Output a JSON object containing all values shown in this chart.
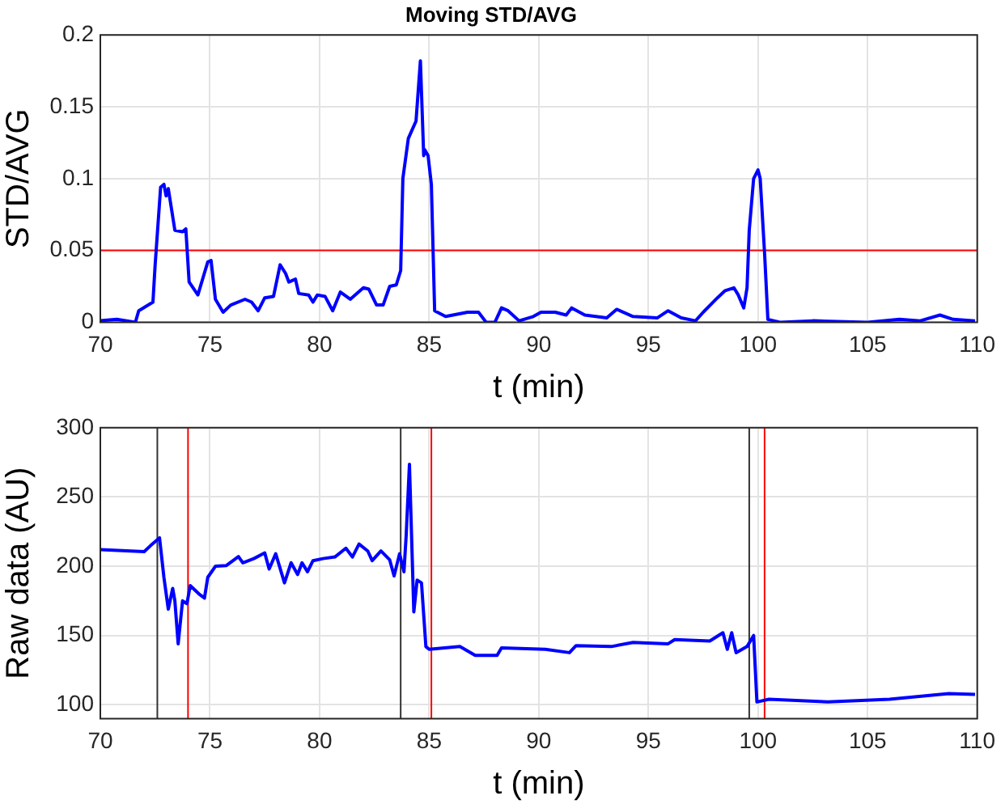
{
  "chart_data": [
    {
      "type": "line",
      "title": "Moving STD/AVG",
      "xlabel": "t (min)",
      "ylabel": "STD/AVG",
      "xlim": [
        70,
        110
      ],
      "xticks": [
        70,
        75,
        80,
        85,
        90,
        95,
        100,
        105,
        110
      ],
      "ylim": [
        0,
        0.2
      ],
      "yticks": [
        0,
        0.05,
        0.1,
        0.15,
        0.2
      ],
      "grid": true,
      "marker": "none",
      "line_style": "solid",
      "x": [
        70,
        70.75,
        71.6,
        71.75,
        72.4,
        72.5,
        72.75,
        72.9,
        73,
        73.1,
        73.4,
        73.75,
        73.9,
        74.05,
        74.45,
        74.9,
        75.05,
        75.25,
        75.6,
        75.95,
        76.6,
        76.9,
        77.2,
        77.5,
        77.9,
        78.2,
        78.45,
        78.6,
        78.9,
        79.05,
        79.5,
        79.7,
        79.9,
        80.25,
        80.6,
        80.95,
        81.4,
        82,
        82.25,
        82.6,
        82.9,
        83.2,
        83.5,
        83.7,
        83.8,
        84.05,
        84.4,
        84.6,
        84.75,
        84.8,
        84.95,
        85.1,
        85.25,
        85.75,
        86.75,
        87.25,
        87.6,
        88,
        88.3,
        88.6,
        89.1,
        89.75,
        90.1,
        90.75,
        91.25,
        91.5,
        92.1,
        93.1,
        93.55,
        94.3,
        95.4,
        95.9,
        96.5,
        97.15,
        97.5,
        98.15,
        98.5,
        98.9,
        99.1,
        99.35,
        99.5,
        99.6,
        99.8,
        100,
        100.1,
        100.3,
        100.45,
        101,
        102.5,
        105,
        106.45,
        107.4,
        108.3,
        108.9,
        109.9
      ],
      "series": [
        {
          "color": "#0000ff",
          "values": [
            0.001,
            0.002,
            0,
            0.008,
            0.014,
            0.04,
            0.094,
            0.096,
            0.088,
            0.093,
            0.064,
            0.063,
            0.065,
            0.028,
            0.019,
            0.042,
            0.043,
            0.016,
            0.007,
            0.012,
            0.016,
            0.014,
            0.008,
            0.017,
            0.018,
            0.04,
            0.034,
            0.028,
            0.03,
            0.02,
            0.019,
            0.014,
            0.019,
            0.018,
            0.008,
            0.021,
            0.016,
            0.024,
            0.023,
            0.012,
            0.012,
            0.025,
            0.026,
            0.036,
            0.1,
            0.128,
            0.14,
            0.182,
            0.116,
            0.12,
            0.116,
            0.096,
            0.008,
            0.004,
            0.007,
            0.007,
            0,
            0,
            0.01,
            0.008,
            0.001,
            0.004,
            0.007,
            0.007,
            0.005,
            0.01,
            0.005,
            0.003,
            0.009,
            0.004,
            0.003,
            0.008,
            0.003,
            0.001,
            0.007,
            0.017,
            0.022,
            0.024,
            0.019,
            0.01,
            0.024,
            0.064,
            0.1,
            0.106,
            0.1,
            0.048,
            0.002,
            0,
            0.001,
            0,
            0.002,
            0.001,
            0.005,
            0.002,
            0.001
          ]
        }
      ],
      "ref_lines": [
        {
          "axis": "y",
          "value": 0.05,
          "color": "#ff0000"
        }
      ]
    },
    {
      "type": "line",
      "xlabel": "t (min)",
      "ylabel": "Raw data (AU)",
      "xlim": [
        70,
        110
      ],
      "xticks": [
        70,
        75,
        80,
        85,
        90,
        95,
        100,
        105,
        110
      ],
      "ylim": [
        90,
        300
      ],
      "yticks": [
        100,
        150,
        200,
        250,
        300
      ],
      "grid": true,
      "marker": "none",
      "line_style": "solid",
      "x": [
        70,
        72,
        72.3,
        72.7,
        72.9,
        73.1,
        73.3,
        73.4,
        73.55,
        73.75,
        73.95,
        74.1,
        74.5,
        74.75,
        74.9,
        75.25,
        75.75,
        76.3,
        76.5,
        77,
        77.5,
        77.7,
        78,
        78.4,
        78.7,
        79,
        79.2,
        79.45,
        79.7,
        80.15,
        80.7,
        81.2,
        81.5,
        81.8,
        82.2,
        82.4,
        82.8,
        83.2,
        83.4,
        83.65,
        83.85,
        83.95,
        84.1,
        84.3,
        84.45,
        84.65,
        84.85,
        85,
        86.4,
        87.1,
        88.1,
        88.3,
        90.3,
        91.4,
        91.7,
        93.3,
        94.3,
        95.9,
        96.2,
        97.8,
        98.4,
        98.6,
        98.8,
        99,
        99.5,
        99.8,
        99.95,
        100.5,
        103.2,
        106,
        108.7,
        109.9
      ],
      "series": [
        {
          "color": "#0000ff",
          "values": [
            212,
            210.5,
            215,
            220.5,
            192,
            169,
            184,
            175,
            144,
            175,
            173,
            186,
            180,
            177,
            192,
            200,
            200.5,
            207,
            202.5,
            205.5,
            209.6,
            198,
            209,
            188,
            202.5,
            194,
            202.5,
            196,
            204,
            205.5,
            206.7,
            213,
            206.7,
            216,
            211,
            204,
            211,
            204.6,
            193,
            209,
            196,
            222,
            273.6,
            167,
            190,
            188,
            142,
            140,
            142,
            135.6,
            135.6,
            141,
            140,
            137.6,
            142.7,
            142,
            145,
            144,
            147,
            146,
            152,
            140,
            152,
            137.6,
            142,
            150,
            102,
            104,
            102,
            104,
            108,
            107.5
          ]
        }
      ],
      "ref_lines": [
        {
          "axis": "x",
          "value": 72.6,
          "color": "#333333"
        },
        {
          "axis": "x",
          "value": 74,
          "color": "#ff0000"
        },
        {
          "axis": "x",
          "value": 83.7,
          "color": "#333333"
        },
        {
          "axis": "x",
          "value": 85.1,
          "color": "#ff0000"
        },
        {
          "axis": "x",
          "value": 99.6,
          "color": "#333333"
        },
        {
          "axis": "x",
          "value": 100.3,
          "color": "#ff0000"
        }
      ]
    }
  ]
}
